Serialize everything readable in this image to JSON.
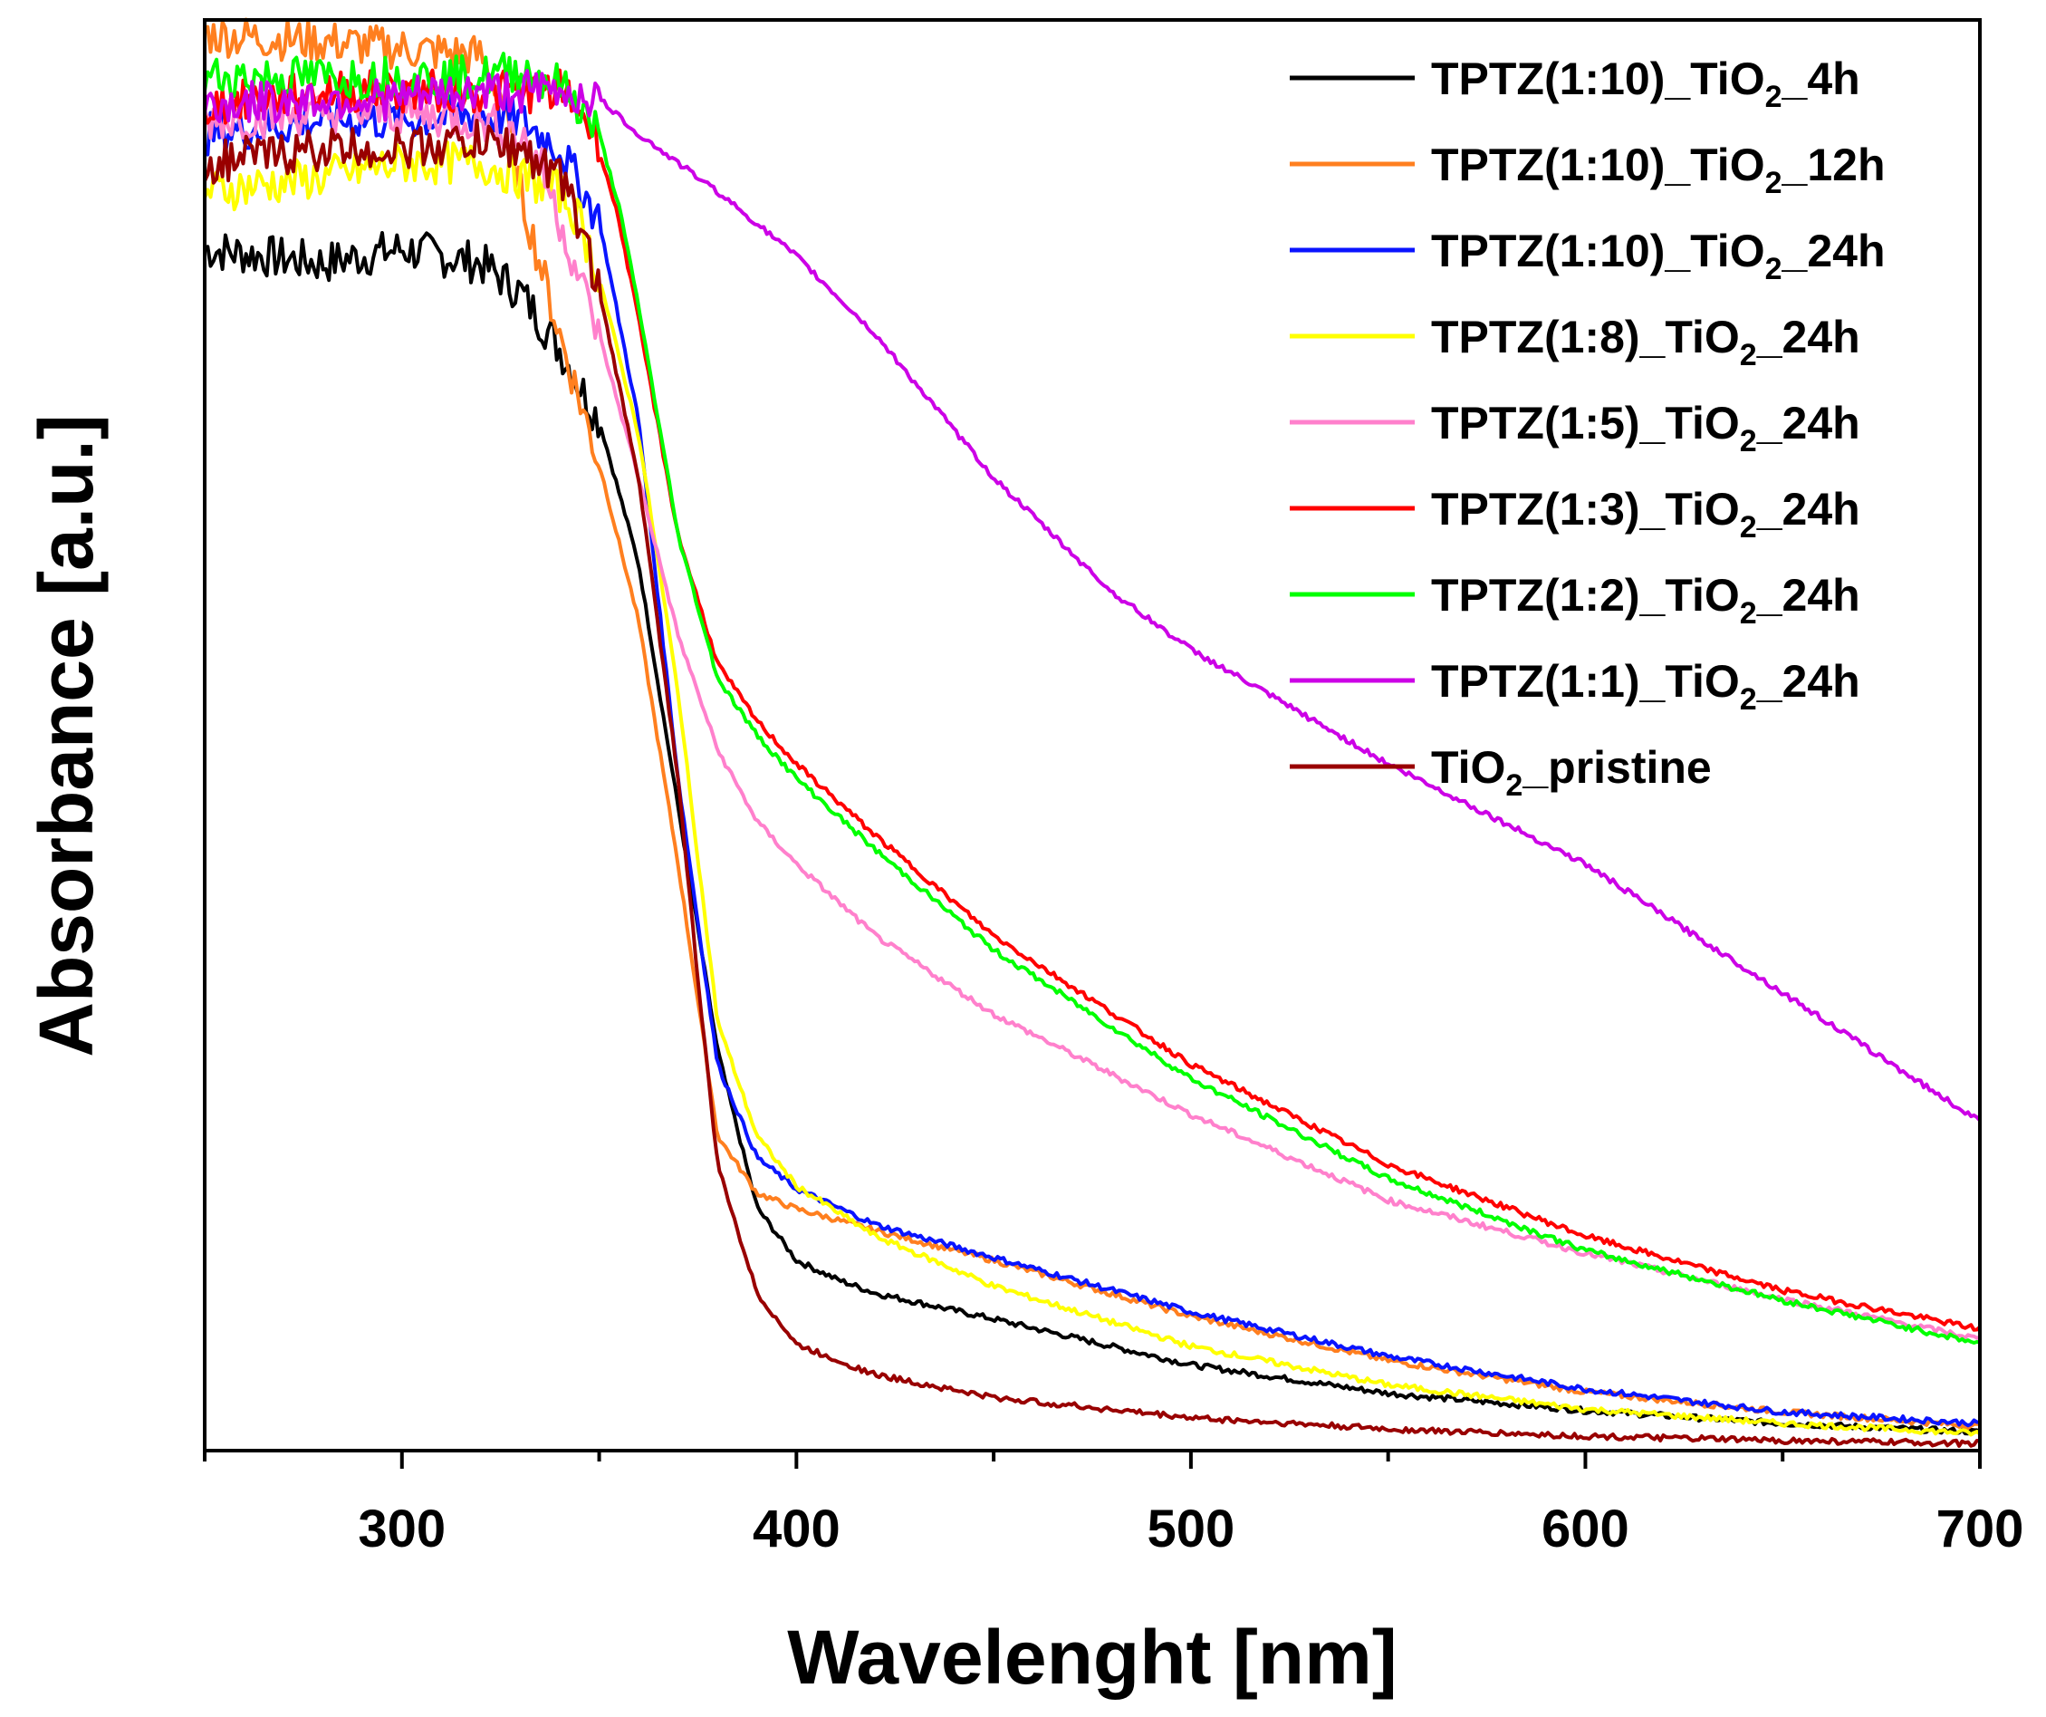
{
  "chart_data": {
    "type": "line",
    "title": "",
    "xlabel": "Wavelenght [nm]",
    "ylabel": "Absorbance [a.u.]",
    "xlim": [
      250,
      700
    ],
    "ylim": [
      0,
      1.0
    ],
    "xticks": [
      300,
      400,
      500,
      600,
      700
    ],
    "xtick_labels": [
      "300",
      "400",
      "500",
      "600",
      "700"
    ],
    "y_tick_labels_shown": false,
    "grid": false,
    "legend_position": "top-right",
    "series": [
      {
        "name": "TPTZ(1:10)_TiO2_4h",
        "label_parts": [
          "TPTZ(1:10)_TiO",
          "2",
          "_4h"
        ],
        "color": "#000000",
        "x": [
          250,
          280,
          300,
          320,
          330,
          340,
          350,
          360,
          370,
          380,
          390,
          400,
          410,
          420,
          450,
          500,
          550,
          600,
          650,
          700
        ],
        "y": [
          0.84,
          0.83,
          0.84,
          0.83,
          0.81,
          0.77,
          0.72,
          0.62,
          0.45,
          0.28,
          0.17,
          0.133,
          0.12,
          0.11,
          0.092,
          0.06,
          0.04,
          0.028,
          0.019,
          0.013
        ]
      },
      {
        "name": "TPTZ(1:10)_TiO2_12h",
        "label_parts": [
          "TPTZ(1:10)_TiO",
          "2",
          "_12h"
        ],
        "color": "#ff7f1f",
        "x": [
          250,
          280,
          300,
          320,
          325,
          330,
          340,
          350,
          360,
          370,
          380,
          390,
          400,
          420,
          450,
          500,
          550,
          600,
          650,
          700
        ],
        "y": [
          0.99,
          0.985,
          0.98,
          0.975,
          0.95,
          0.88,
          0.78,
          0.69,
          0.58,
          0.41,
          0.22,
          0.18,
          0.169,
          0.154,
          0.133,
          0.094,
          0.063,
          0.041,
          0.027,
          0.017
        ]
      },
      {
        "name": "TPTZ(1:10)_TiO2_24h",
        "label_parts": [
          "TPTZ(1:10)_TiO",
          "2",
          "_24h"
        ],
        "color": "#0a14ff",
        "x": [
          250,
          280,
          300,
          320,
          330,
          340,
          350,
          360,
          370,
          380,
          390,
          400,
          420,
          450,
          500,
          550,
          600,
          650,
          700
        ],
        "y": [
          0.92,
          0.93,
          0.93,
          0.935,
          0.93,
          0.91,
          0.86,
          0.72,
          0.47,
          0.27,
          0.205,
          0.183,
          0.158,
          0.135,
          0.097,
          0.066,
          0.043,
          0.027,
          0.019
        ]
      },
      {
        "name": "TPTZ(1:8)_TiO2_24h",
        "label_parts": [
          "TPTZ(1:8)_TiO",
          "2",
          "_24h"
        ],
        "color": "#ffff00",
        "x": [
          250,
          280,
          300,
          320,
          330,
          340,
          345,
          350,
          360,
          370,
          380,
          390,
          400,
          420,
          450,
          500,
          550,
          600,
          650,
          700
        ],
        "y": [
          0.88,
          0.89,
          0.9,
          0.9,
          0.89,
          0.88,
          0.86,
          0.82,
          0.71,
          0.53,
          0.3,
          0.22,
          0.185,
          0.15,
          0.115,
          0.073,
          0.046,
          0.029,
          0.019,
          0.012
        ]
      },
      {
        "name": "TPTZ(1:5)_TiO2_24h",
        "label_parts": [
          "TPTZ(1:5)_TiO",
          "2",
          "_24h"
        ],
        "color": "#ff80cc",
        "x": [
          250,
          280,
          300,
          320,
          330,
          335,
          340,
          350,
          360,
          370,
          380,
          390,
          400,
          420,
          450,
          500,
          550,
          600,
          650,
          700
        ],
        "y": [
          0.93,
          0.935,
          0.935,
          0.93,
          0.92,
          0.9,
          0.86,
          0.78,
          0.68,
          0.57,
          0.49,
          0.44,
          0.41,
          0.36,
          0.305,
          0.235,
          0.175,
          0.138,
          0.106,
          0.078
        ]
      },
      {
        "name": "TPTZ(1:3)_TiO2_24h",
        "label_parts": [
          "TPTZ(1:3)_TiO",
          "2",
          "_24h"
        ],
        "color": "#ff0000",
        "x": [
          250,
          280,
          300,
          320,
          330,
          340,
          345,
          350,
          355,
          360,
          370,
          380,
          390,
          400,
          420,
          450,
          500,
          550,
          600,
          650,
          700
        ],
        "y": [
          0.94,
          0.95,
          0.95,
          0.95,
          0.95,
          0.95,
          0.94,
          0.91,
          0.86,
          0.79,
          0.64,
          0.55,
          0.51,
          0.48,
          0.43,
          0.36,
          0.27,
          0.2,
          0.15,
          0.112,
          0.085
        ]
      },
      {
        "name": "TPTZ(1:2)_TiO2_24h",
        "label_parts": [
          "TPTZ(1:2)_TiO",
          "2",
          "_24h"
        ],
        "color": "#00ff00",
        "x": [
          250,
          280,
          300,
          320,
          330,
          340,
          345,
          350,
          355,
          360,
          370,
          380,
          390,
          400,
          420,
          450,
          500,
          550,
          600,
          650,
          700
        ],
        "y": [
          0.96,
          0.96,
          0.96,
          0.96,
          0.965,
          0.955,
          0.94,
          0.92,
          0.87,
          0.8,
          0.64,
          0.54,
          0.5,
          0.47,
          0.42,
          0.35,
          0.26,
          0.19,
          0.14,
          0.105,
          0.075
        ]
      },
      {
        "name": "TPTZ(1:1)_TiO2_24h",
        "label_parts": [
          "TPTZ(1:1)_TiO",
          "2",
          "_24h"
        ],
        "color": "#cc00e6",
        "x": [
          250,
          280,
          300,
          320,
          340,
          350,
          360,
          380,
          400,
          420,
          450,
          480,
          500,
          550,
          600,
          650,
          700
        ],
        "y": [
          0.94,
          0.945,
          0.945,
          0.95,
          0.95,
          0.945,
          0.92,
          0.88,
          0.835,
          0.78,
          0.68,
          0.6,
          0.56,
          0.48,
          0.41,
          0.32,
          0.23
        ]
      },
      {
        "name": "TiO2_pristine",
        "label_parts": [
          "TiO",
          "2",
          "_pristine"
        ],
        "color": "#990000",
        "x": [
          250,
          280,
          300,
          320,
          330,
          340,
          345,
          350,
          360,
          370,
          375,
          380,
          390,
          400,
          420,
          450,
          500,
          550,
          600,
          650,
          700
        ],
        "y": [
          0.9,
          0.91,
          0.91,
          0.915,
          0.91,
          0.89,
          0.86,
          0.81,
          0.68,
          0.47,
          0.33,
          0.2,
          0.11,
          0.074,
          0.053,
          0.037,
          0.023,
          0.015,
          0.01,
          0.007,
          0.005
        ]
      }
    ]
  }
}
